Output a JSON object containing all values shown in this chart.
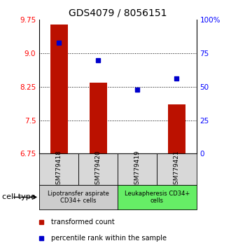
{
  "title": "GDS4079 / 8056151",
  "samples": [
    "GSM779418",
    "GSM779420",
    "GSM779419",
    "GSM779421"
  ],
  "bar_values": [
    9.65,
    8.35,
    6.65,
    7.85
  ],
  "percentile_values": [
    83,
    70,
    48,
    56
  ],
  "ylim_left": [
    6.75,
    9.75
  ],
  "ylim_right": [
    0,
    100
  ],
  "yticks_left": [
    6.75,
    7.5,
    8.25,
    9.0,
    9.75
  ],
  "yticks_right": [
    0,
    25,
    50,
    75,
    100
  ],
  "ytick_labels_right": [
    "0",
    "25",
    "50",
    "75",
    "100%"
  ],
  "bar_color": "#bb1100",
  "dot_color": "#0000cc",
  "bar_width": 0.45,
  "grid_color": "black",
  "cell_type_groups": [
    {
      "label": "Lipotransfer aspirate\nCD34+ cells",
      "samples": [
        0,
        1
      ],
      "color": "#cccccc"
    },
    {
      "label": "Leukapheresis CD34+\ncells",
      "samples": [
        2,
        3
      ],
      "color": "#66ee66"
    }
  ],
  "cell_type_label": "cell type",
  "legend_bar_label": "transformed count",
  "legend_dot_label": "percentile rank within the sample",
  "background_color": "#ffffff",
  "gridline_values": [
    7.5,
    8.25,
    9.0
  ]
}
